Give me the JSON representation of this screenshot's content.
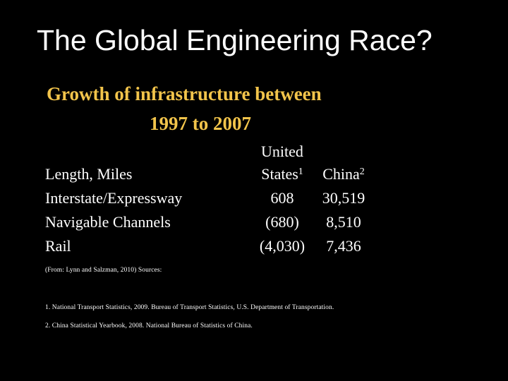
{
  "title": "The Global Engineering Race?",
  "subtitle": {
    "line1": "Growth of infrastructure between",
    "line2": "1997 to 2007"
  },
  "colors": {
    "subtitle": "#f2c44b",
    "background": "#000000",
    "text": "#ffffff"
  },
  "table": {
    "header_row_label": "Length, Miles",
    "col_us_line1": "United",
    "col_us_line2": "States",
    "col_us_sup": "1",
    "col_china": "China",
    "col_china_sup": "2",
    "rows": [
      {
        "label": "Interstate/Expressway",
        "us": "608",
        "china": "30,519"
      },
      {
        "label": "Navigable Channels",
        "us": "(680)",
        "china": "8,510"
      },
      {
        "label": "Rail",
        "us": "(4,030)",
        "china": "7,436"
      }
    ]
  },
  "sources": {
    "intro": "(From: Lynn and Salzman, 2010) Sources:",
    "items": [
      "1. National Transport Statistics, 2009. Bureau of Transport Statistics, U.S. Department of Transportation.",
      "2. China Statistical Yearbook, 2008. National Bureau of Statistics of China."
    ]
  }
}
